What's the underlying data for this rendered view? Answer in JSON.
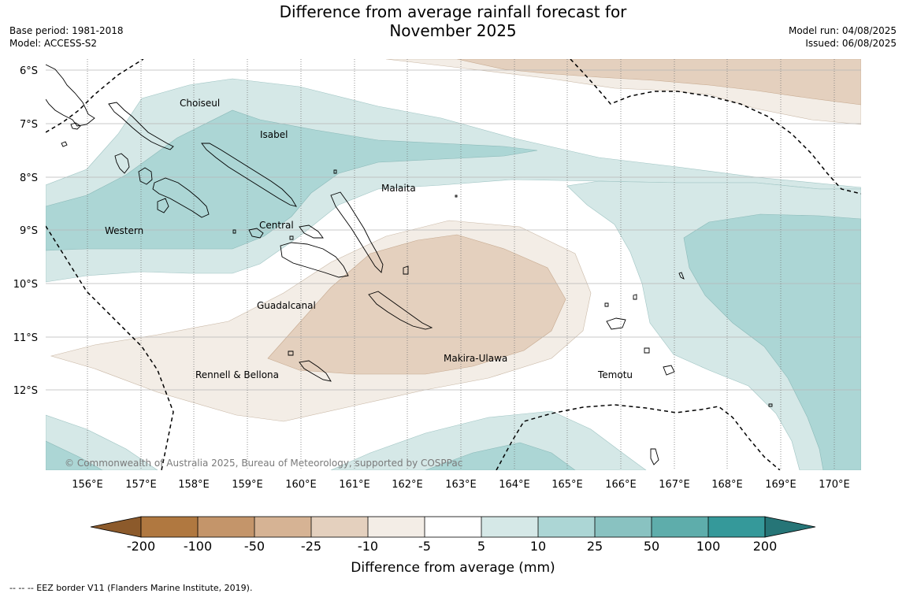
{
  "header": {
    "title_line1": "Difference from average rainfall forecast for",
    "title_line2": "November 2025",
    "base_period": "Base period: 1981-2018",
    "model": "Model: ACCESS-S2",
    "model_run": "Model run: 04/08/2025",
    "issued": "Issued: 06/08/2025"
  },
  "map": {
    "lat_labels": [
      "6°S",
      "7°S",
      "8°S",
      "9°S",
      "10°S",
      "11°S",
      "12°S"
    ],
    "lon_labels": [
      "156°E",
      "157°E",
      "158°E",
      "159°E",
      "160°E",
      "161°E",
      "162°E",
      "163°E",
      "164°E",
      "165°E",
      "166°E",
      "167°E",
      "168°E",
      "169°E",
      "170°E"
    ],
    "regions": {
      "choiseul": "Choiseul",
      "isabel": "Isabel",
      "malaita": "Malaita",
      "western": "Western",
      "central": "Central",
      "guadalcanal": "Guadalcanal",
      "makira": "Makira-Ulawa",
      "rennell": "Rennell & Bellona",
      "temotu": "Temotu"
    },
    "copyright": "© Commonwealth of Australia 2025, Bureau of Meteorology, supported by COSPPac"
  },
  "colorbar": {
    "ticks": [
      "-200",
      "-100",
      "-50",
      "-25",
      "-10",
      "-5",
      "5",
      "10",
      "25",
      "50",
      "100",
      "200"
    ],
    "colors": [
      "#8c5a2b",
      "#b07840",
      "#c4956a",
      "#d6b394",
      "#e4d0be",
      "#f3ede6",
      "#ffffff",
      "#d5e8e7",
      "#acd6d5",
      "#89c2c1",
      "#5eadab",
      "#35999a",
      "#267577"
    ],
    "title": "Difference from average (mm)"
  },
  "footnote": "--  --  -- EEZ border V11 (Flanders Marine Institute, 2019)."
}
